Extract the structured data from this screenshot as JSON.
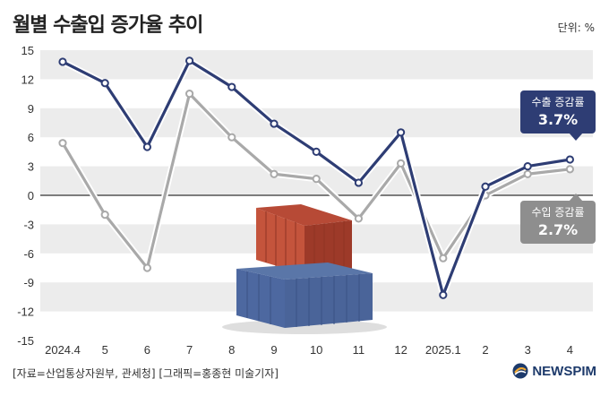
{
  "header": {
    "title": "월별 수출입 증가율 추이",
    "unit": "단위: %"
  },
  "footer": {
    "source": "[자료=산업통상자원부, 관세청] [그래픽=홍종현 미술기자]",
    "logo": "NEWSPIM"
  },
  "callouts": {
    "export": {
      "label": "수출 증감률",
      "value": "3.7%"
    },
    "import": {
      "label": "수입 증감률",
      "value": "2.7%"
    }
  },
  "colors": {
    "export": "#2e3d74",
    "import": "#a9a9a9",
    "band": "#ececec",
    "zero_line": "#555555"
  },
  "icons": [
    "shipping-containers-illustration",
    "newspim-logo-icon"
  ],
  "chart_data": {
    "type": "line",
    "title": "월별 수출입 증가율 추이",
    "categories": [
      "2024.4",
      "5",
      "6",
      "7",
      "8",
      "9",
      "10",
      "11",
      "12",
      "2025.1",
      "2",
      "3",
      "4"
    ],
    "y_ticks": [
      15,
      12,
      9,
      6,
      3,
      0,
      -3,
      -6,
      -9,
      -12,
      -15
    ],
    "ylim": [
      -15,
      15
    ],
    "grid": "alternating horizontal bands",
    "series": [
      {
        "name": "수출 증감률",
        "values": [
          13.8,
          11.6,
          5.0,
          13.9,
          11.2,
          7.4,
          4.5,
          1.3,
          6.5,
          -10.3,
          0.9,
          3.0,
          3.7
        ]
      },
      {
        "name": "수입 증감률",
        "values": [
          5.4,
          -2.0,
          -7.5,
          10.5,
          6.0,
          2.2,
          1.7,
          -2.4,
          3.3,
          -6.5,
          0.0,
          2.2,
          2.7
        ]
      }
    ]
  }
}
